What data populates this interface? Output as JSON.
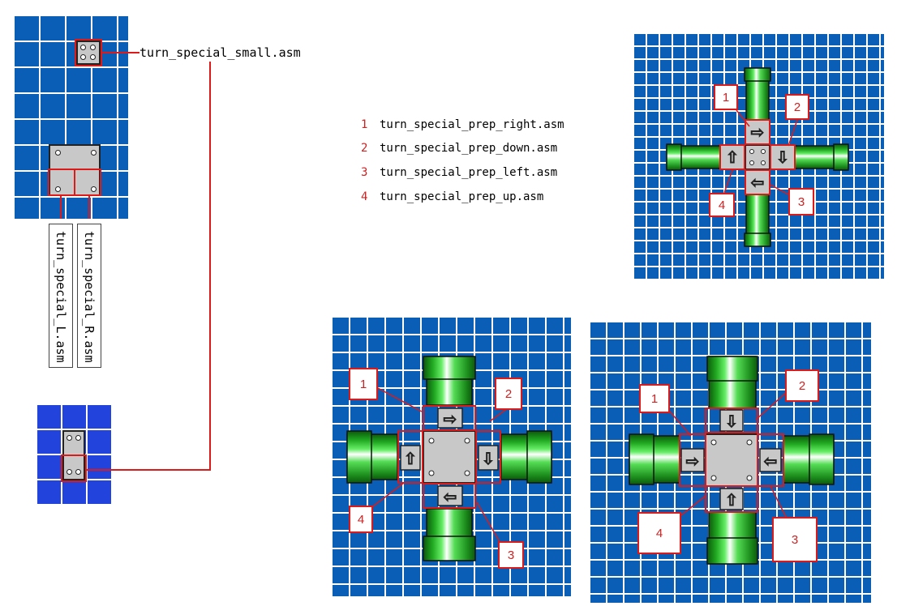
{
  "labels": {
    "small": "turn_special_small.asm",
    "left": "turn_special_L.asm",
    "right": "turn_special_R.asm"
  },
  "legend": [
    {
      "num": "1",
      "file": "turn_special_prep_right.asm"
    },
    {
      "num": "2",
      "file": "turn_special_prep_down.asm"
    },
    {
      "num": "3",
      "file": "turn_special_prep_left.asm"
    },
    {
      "num": "4",
      "file": "turn_special_prep_up.asm"
    }
  ],
  "callouts": [
    "1",
    "2",
    "3",
    "4"
  ],
  "colors": {
    "grid": "#0a5eb5",
    "grid_alt": "#2244dd",
    "highlight": "#dd1a1a",
    "pipe": "#22bb22",
    "plate": "#c8c8c8"
  }
}
